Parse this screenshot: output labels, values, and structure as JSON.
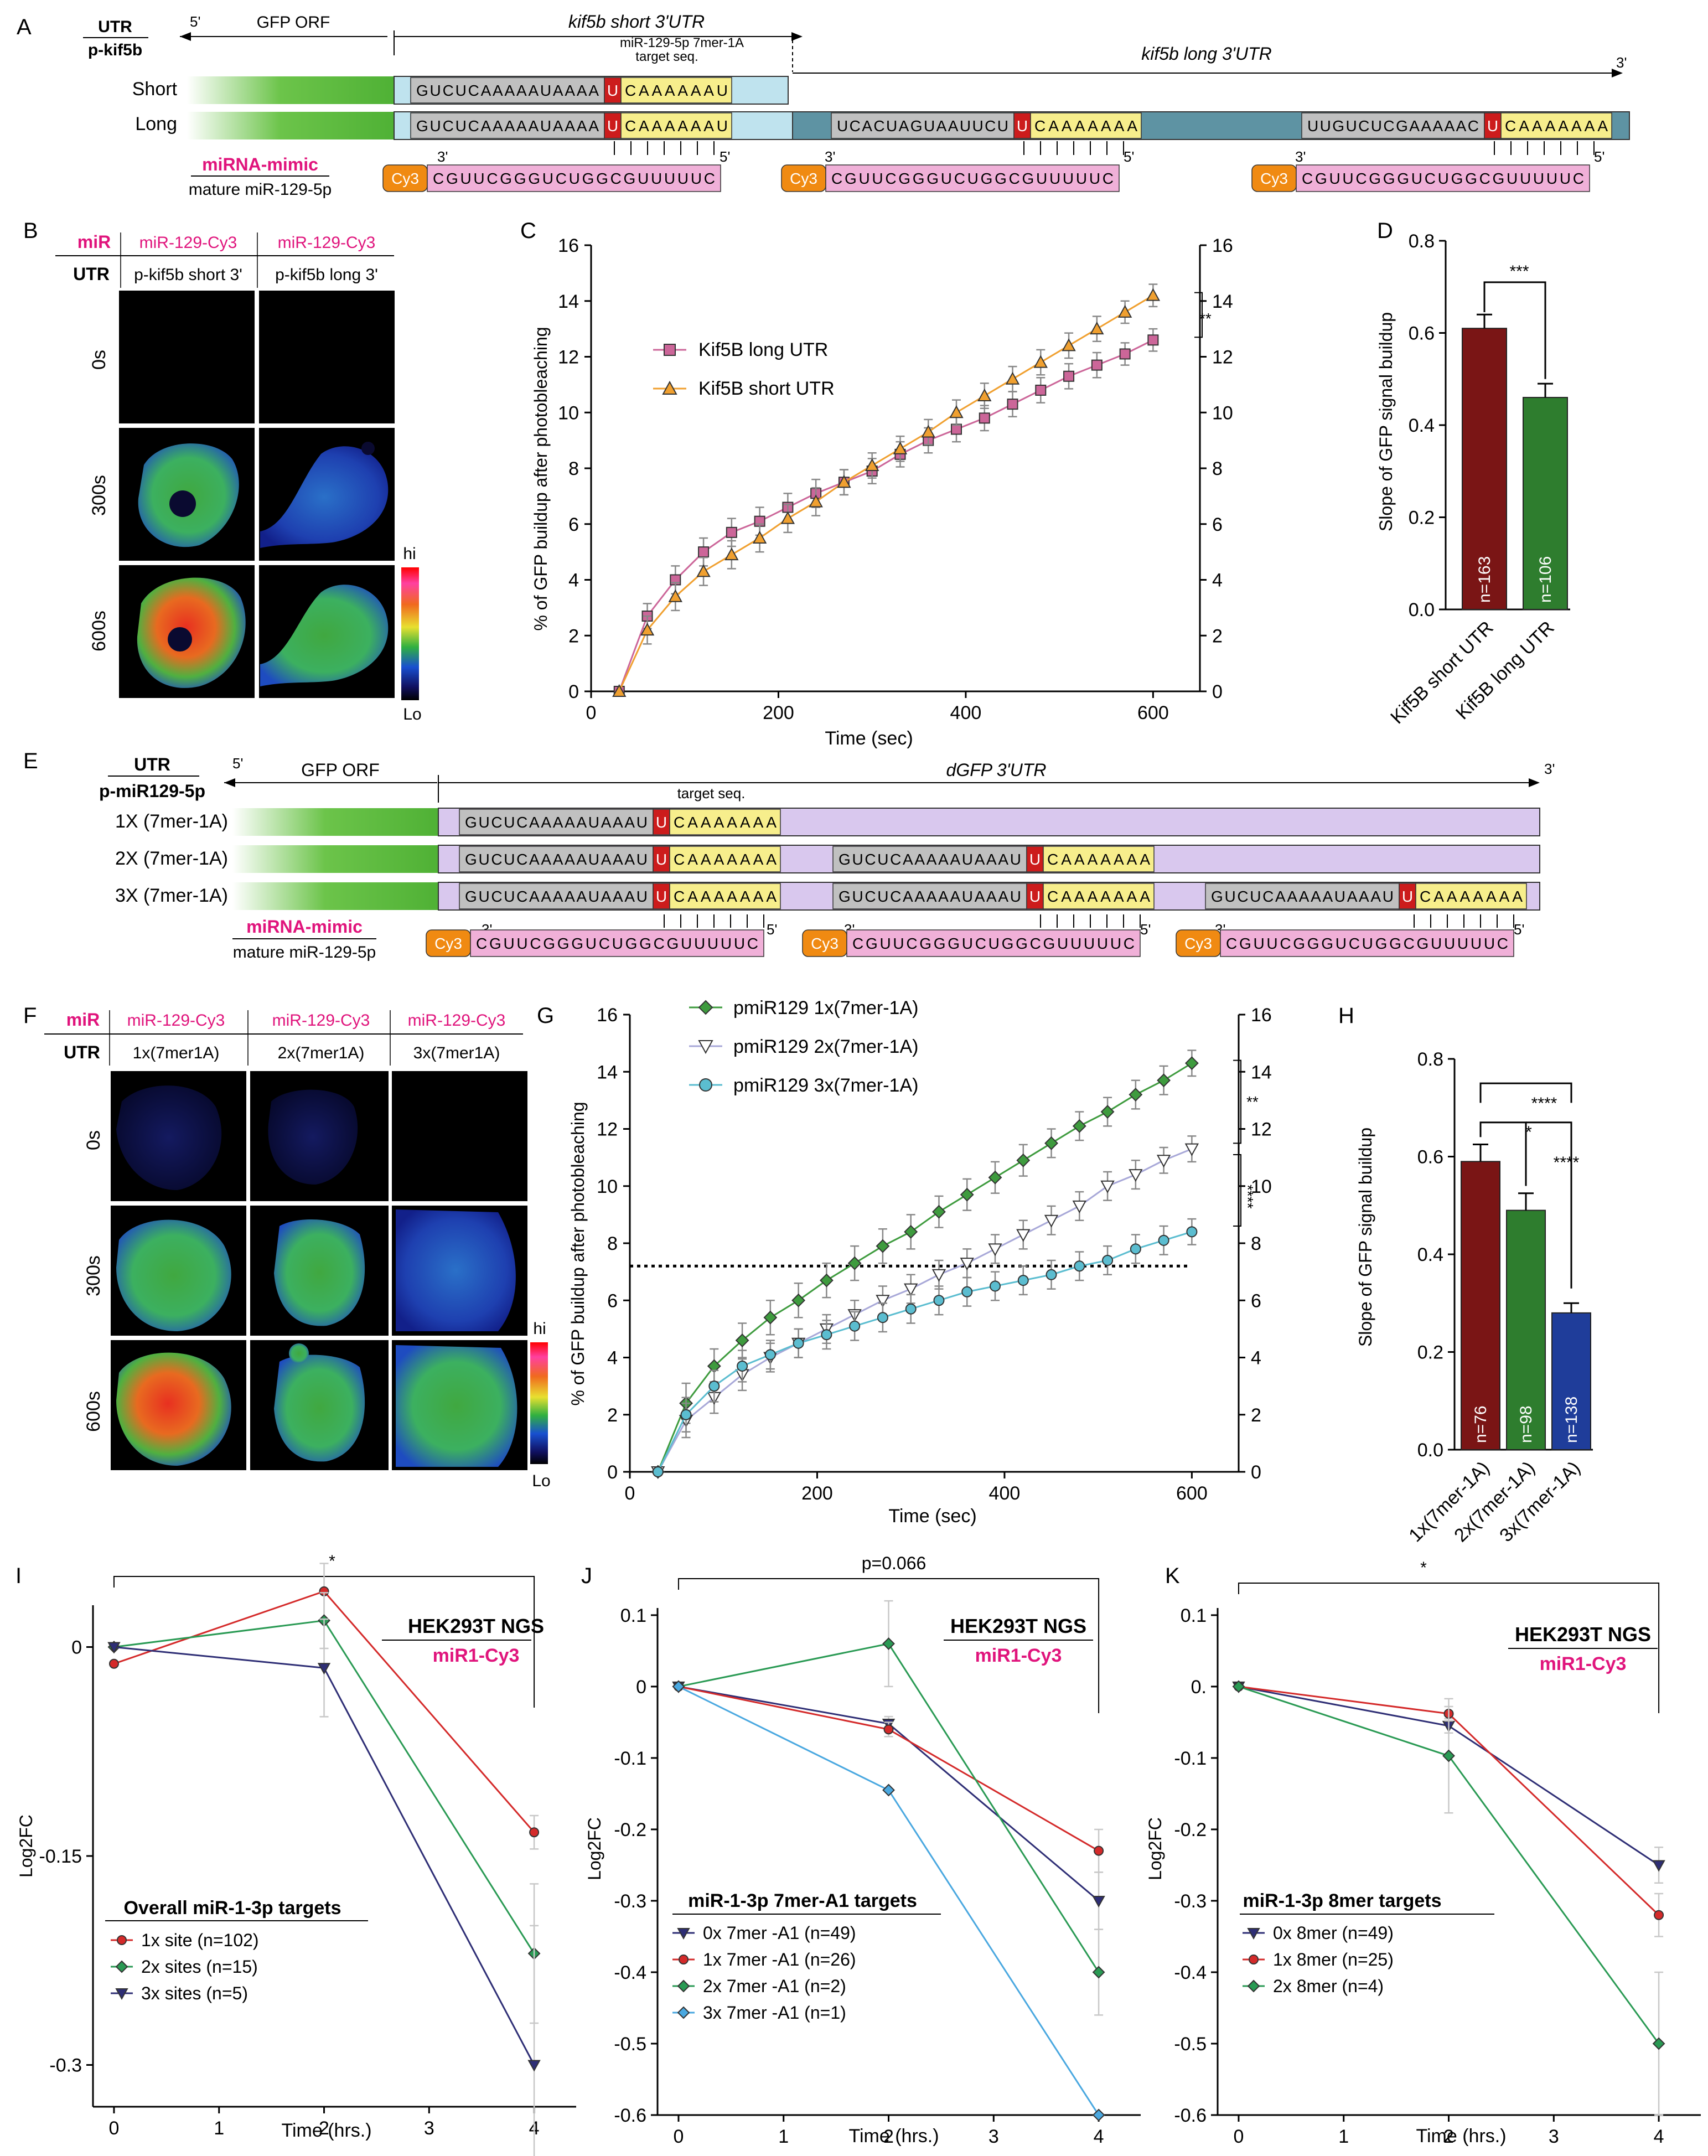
{
  "panels": {
    "A": "A",
    "B": "B",
    "C": "C",
    "D": "D",
    "E": "E",
    "F": "F",
    "G": "G",
    "H": "H",
    "I": "I",
    "J": "J",
    "K": "K"
  },
  "common": {
    "p5": "5'",
    "p3": "3'",
    "cy3": "Cy3",
    "hi": "hi",
    "lo": "Lo",
    "mimic": "miRNA-mimic",
    "mature": "mature miR-129-5p",
    "mature_seq": "CGUUCGGGUCUGGCGUUUUUC",
    "xlabel_time": "Time (sec)",
    "ylabel_gfp": "% of GFP buildup after photobleaching",
    "ylabel_slope": "Slope of GFP signal buildup",
    "t0": "0s",
    "t300": "300s",
    "t600": "600s",
    "miR_label": "miR",
    "utr_label": "UTR",
    "miR_cy3": "miR-129-Cy3",
    "ngs_label": "HEK293T NGS",
    "ngs_miR": "miR1-Cy3",
    "xlabel_hrs": "Time (hrs.)",
    "ylabel_fc": "Log2FC"
  },
  "panelA": {
    "utr": "UTR",
    "construct": "p-kif5b",
    "gfp_orf": "GFP ORF",
    "short_utr": "kif5b short 3'UTR",
    "long_utr": "kif5b long 3'UTR",
    "target_line1": "miR-129-5p 7mer-1A",
    "target_line2": "target seq.",
    "row_short": "Short",
    "row_long": "Long",
    "site_gray": "GUCUCAAAAAUAAAA",
    "site_u": "U",
    "site_yellow": "CAAAAAAU",
    "site2_gray": "UCACUAGUAAUUCU",
    "site2_yellow": "CAAAAAAA",
    "site3_gray": "UUGUCUCGAAAAAC",
    "site3_yellow": "CAAAAAAA"
  },
  "panelB": {
    "col1": "p-kif5b short 3'",
    "col2": "p-kif5b long 3'"
  },
  "panelE": {
    "utr": "UTR",
    "construct": "p-miR129-5p",
    "gfp_orf": "GFP ORF",
    "dgfp": "dGFP 3'UTR",
    "target": "target seq.",
    "rows": [
      "1X (7mer-1A)",
      "2X (7mer-1A)",
      "3X (7mer-1A)"
    ],
    "site_gray": "GUCUCAAAAAUAAAU",
    "site_u": "U",
    "site_yellow": "CAAAAAAA"
  },
  "panelF": {
    "cols": [
      "1x(7mer1A)",
      "2x(7mer1A)",
      "3x(7mer1A)"
    ]
  },
  "chart_data": [
    {
      "panel": "C",
      "type": "line",
      "xlabel": "Time (sec)",
      "ylabel": "% of GFP buildup after photobleaching",
      "xlim": [
        0,
        650
      ],
      "ylim": [
        0,
        16
      ],
      "xticks": [
        0,
        200,
        400,
        600
      ],
      "yticks": [
        0,
        2,
        4,
        6,
        8,
        10,
        12,
        14,
        16
      ],
      "significance": "**",
      "legend_position": "upper-left",
      "x": [
        30,
        60,
        90,
        120,
        150,
        180,
        210,
        240,
        270,
        300,
        330,
        360,
        390,
        420,
        450,
        480,
        510,
        540,
        570,
        600
      ],
      "series": [
        {
          "name": "Kif5B long UTR",
          "color": "#cc6699",
          "marker": "square",
          "values": [
            0,
            2.7,
            4.0,
            5.0,
            5.7,
            6.1,
            6.6,
            7.1,
            7.5,
            7.9,
            8.5,
            9.0,
            9.4,
            9.8,
            10.3,
            10.8,
            11.3,
            11.7,
            12.1,
            12.6
          ],
          "errors": [
            0,
            0.45,
            0.5,
            0.5,
            0.5,
            0.5,
            0.5,
            0.5,
            0.45,
            0.45,
            0.45,
            0.45,
            0.45,
            0.45,
            0.45,
            0.45,
            0.45,
            0.45,
            0.4,
            0.4
          ]
        },
        {
          "name": "Kif5B short UTR",
          "color": "#f0a030",
          "marker": "triangle",
          "values": [
            0,
            2.2,
            3.4,
            4.3,
            4.9,
            5.5,
            6.2,
            6.8,
            7.5,
            8.1,
            8.7,
            9.3,
            10.0,
            10.6,
            11.2,
            11.8,
            12.4,
            13.0,
            13.6,
            14.2
          ],
          "errors": [
            0,
            0.5,
            0.5,
            0.5,
            0.5,
            0.5,
            0.5,
            0.5,
            0.45,
            0.45,
            0.45,
            0.45,
            0.45,
            0.45,
            0.45,
            0.45,
            0.45,
            0.45,
            0.4,
            0.4
          ]
        }
      ]
    },
    {
      "panel": "D",
      "type": "bar",
      "ylabel": "Slope of GFP signal buildup",
      "ylim": [
        0,
        0.8
      ],
      "yticks": [
        0.0,
        0.2,
        0.4,
        0.6,
        0.8
      ],
      "categories": [
        "Kif5B short UTR",
        "Kif5B long UTR"
      ],
      "values": [
        0.61,
        0.46
      ],
      "errors": [
        0.03,
        0.03
      ],
      "n_labels": [
        "n=163",
        "n=106"
      ],
      "colors": [
        "#7a1515",
        "#2e7d2e"
      ],
      "significance": "***"
    },
    {
      "panel": "G",
      "type": "line",
      "xlabel": "Time (sec)",
      "ylabel": "% of GFP buildup after photobleaching",
      "xlim": [
        0,
        650
      ],
      "ylim": [
        0,
        16
      ],
      "xticks": [
        0,
        200,
        400,
        600
      ],
      "yticks": [
        0,
        2,
        4,
        6,
        8,
        10,
        12,
        14,
        16
      ],
      "reference_line": 7.2,
      "significance": [
        "**",
        "****"
      ],
      "x": [
        30,
        60,
        90,
        120,
        150,
        180,
        210,
        240,
        270,
        300,
        330,
        360,
        390,
        420,
        450,
        480,
        510,
        540,
        570,
        600
      ],
      "series": [
        {
          "name": "pmiR129 1x(7mer-1A)",
          "color": "#3e9b3e",
          "marker": "diamond",
          "values": [
            0,
            2.4,
            3.7,
            4.6,
            5.4,
            6.0,
            6.7,
            7.3,
            7.9,
            8.4,
            9.1,
            9.7,
            10.3,
            10.9,
            11.5,
            12.1,
            12.6,
            13.2,
            13.7,
            14.3
          ],
          "errors": [
            0,
            0.7,
            0.6,
            0.6,
            0.6,
            0.6,
            0.6,
            0.6,
            0.6,
            0.6,
            0.55,
            0.55,
            0.55,
            0.55,
            0.5,
            0.5,
            0.5,
            0.5,
            0.5,
            0.45
          ]
        },
        {
          "name": "pmiR129 2x(7mer-1A)",
          "color": "#a8a8d8",
          "marker": "triangle-down",
          "values": [
            0,
            1.8,
            2.6,
            3.4,
            4.0,
            4.5,
            5.0,
            5.5,
            6.0,
            6.4,
            6.9,
            7.3,
            7.8,
            8.3,
            8.8,
            9.3,
            10.0,
            10.4,
            10.9,
            11.3
          ],
          "errors": [
            0,
            0.6,
            0.55,
            0.55,
            0.5,
            0.5,
            0.5,
            0.5,
            0.5,
            0.5,
            0.5,
            0.5,
            0.5,
            0.5,
            0.5,
            0.5,
            0.5,
            0.5,
            0.45,
            0.45
          ]
        },
        {
          "name": "pmiR129 3x(7mer-1A)",
          "color": "#5bbdd0",
          "marker": "circle",
          "values": [
            0,
            2.0,
            3.0,
            3.7,
            4.1,
            4.5,
            4.8,
            5.1,
            5.4,
            5.7,
            6.0,
            6.3,
            6.5,
            6.7,
            6.9,
            7.2,
            7.4,
            7.8,
            8.1,
            8.4
          ],
          "errors": [
            0,
            0.6,
            0.55,
            0.55,
            0.5,
            0.5,
            0.5,
            0.5,
            0.5,
            0.5,
            0.5,
            0.5,
            0.5,
            0.5,
            0.5,
            0.5,
            0.5,
            0.5,
            0.5,
            0.45
          ]
        }
      ]
    },
    {
      "panel": "H",
      "type": "bar",
      "ylabel": "Slope of GFP signal buildup",
      "ylim": [
        0,
        0.8
      ],
      "yticks": [
        0.0,
        0.2,
        0.4,
        0.6,
        0.8
      ],
      "categories": [
        "1x(7mer-1A)",
        "2x(7mer-1A)",
        "3x(7mer-1A)"
      ],
      "values": [
        0.59,
        0.49,
        0.28
      ],
      "errors": [
        0.035,
        0.035,
        0.02
      ],
      "n_labels": [
        "n=76",
        "n=98",
        "n=138"
      ],
      "colors": [
        "#7a1515",
        "#2e7d2e",
        "#1f3d9a"
      ],
      "significance": [
        "*",
        "****",
        "****"
      ]
    },
    {
      "panel": "I",
      "type": "line",
      "title": "Overall miR-1-3p targets",
      "xlabel": "Time (hrs.)",
      "ylabel": "Log2FC",
      "xlim": [
        -0.2,
        4.4
      ],
      "ylim": [
        -0.33,
        0.03
      ],
      "xticks": [
        0,
        1,
        2,
        3,
        4
      ],
      "ytick_labels": [
        "0",
        "-0.15",
        "-0.3"
      ],
      "ytick_values": [
        0,
        -0.15,
        -0.3
      ],
      "significance": "*",
      "x": [
        0,
        2,
        4
      ],
      "series": [
        {
          "name": "1x site (n=102)",
          "color": "#d42a2a",
          "marker": "circle",
          "values": [
            -0.012,
            0.04,
            -0.133
          ],
          "errors": [
            0,
            0.02,
            0.012
          ]
        },
        {
          "name": "2x sites (n=15)",
          "color": "#2a9a54",
          "marker": "diamond",
          "values": [
            0.0,
            0.019,
            -0.22
          ],
          "errors": [
            0,
            0.02,
            0.05
          ]
        },
        {
          "name": "3x sites (n=5)",
          "color": "#2e2e75",
          "marker": "triangle-down",
          "values": [
            0.0,
            -0.015,
            -0.3
          ],
          "errors": [
            0,
            0.035,
            0.1
          ]
        }
      ]
    },
    {
      "panel": "J",
      "type": "line",
      "title": "miR-1-3p 7mer-A1 targets",
      "xlabel": "Time (hrs.)",
      "ylabel": "Log2FC",
      "xlim": [
        -0.2,
        4.4
      ],
      "ylim": [
        -0.6,
        0.11
      ],
      "xticks": [
        0,
        1,
        2,
        3,
        4
      ],
      "ytick_labels": [
        "0.1",
        "0",
        "-0.1",
        "-0.2",
        "-0.3",
        "-0.4",
        "-0.5",
        "-0.6"
      ],
      "ytick_values": [
        0.1,
        0,
        -0.1,
        -0.2,
        -0.3,
        -0.4,
        -0.5,
        -0.6
      ],
      "significance": "p=0.066",
      "x": [
        0,
        2,
        4
      ],
      "series": [
        {
          "name": "0x 7mer -A1 (n=49)",
          "color": "#2e2e75",
          "marker": "triangle-down",
          "values": [
            0,
            -0.052,
            -0.3
          ],
          "errors": [
            0,
            0.01,
            0.04
          ]
        },
        {
          "name": "1x 7mer -A1 (n=26)",
          "color": "#d42a2a",
          "marker": "circle",
          "values": [
            0,
            -0.06,
            -0.23
          ],
          "errors": [
            0,
            0.01,
            0.03
          ]
        },
        {
          "name": "2x 7mer -A1 (n=2)",
          "color": "#2a9a54",
          "marker": "diamond",
          "values": [
            0,
            0.06,
            -0.4
          ],
          "errors": [
            0,
            0.06,
            0.06
          ]
        },
        {
          "name": "3x 7mer -A1 (n=1)",
          "color": "#4aa8e0",
          "marker": "diamond",
          "values": [
            0,
            -0.145,
            -0.6
          ],
          "errors": [
            0,
            0,
            0
          ]
        }
      ]
    },
    {
      "panel": "K",
      "type": "line",
      "title": "miR-1-3p 8mer targets",
      "xlabel": "Time (hrs.)",
      "ylabel": "Log2FC",
      "xlim": [
        -0.2,
        4.4
      ],
      "ylim": [
        -0.6,
        0.11
      ],
      "xticks": [
        0,
        1,
        2,
        3,
        4
      ],
      "ytick_labels": [
        "0.1",
        "0.",
        "-0.1",
        "-0.2",
        "-0.3",
        "-0.4",
        "-0.5",
        "-0.6"
      ],
      "ytick_values": [
        0.1,
        0,
        -0.1,
        -0.2,
        -0.3,
        -0.4,
        -0.5,
        -0.6
      ],
      "significance": "*",
      "x": [
        0,
        2,
        4
      ],
      "series": [
        {
          "name": "0x 8mer (n=49)",
          "color": "#2e2e75",
          "marker": "triangle-down",
          "values": [
            0,
            -0.055,
            -0.25
          ],
          "errors": [
            0,
            0.01,
            0.025
          ]
        },
        {
          "name": "1x 8mer (n=25)",
          "color": "#d42a2a",
          "marker": "circle",
          "values": [
            0,
            -0.038,
            -0.32
          ],
          "errors": [
            0,
            0.01,
            0.03
          ]
        },
        {
          "name": "2x 8mer (n=4)",
          "color": "#2a9a54",
          "marker": "diamond",
          "values": [
            0,
            -0.097,
            -0.5
          ],
          "errors": [
            0,
            0.08,
            0.1
          ]
        }
      ]
    }
  ]
}
